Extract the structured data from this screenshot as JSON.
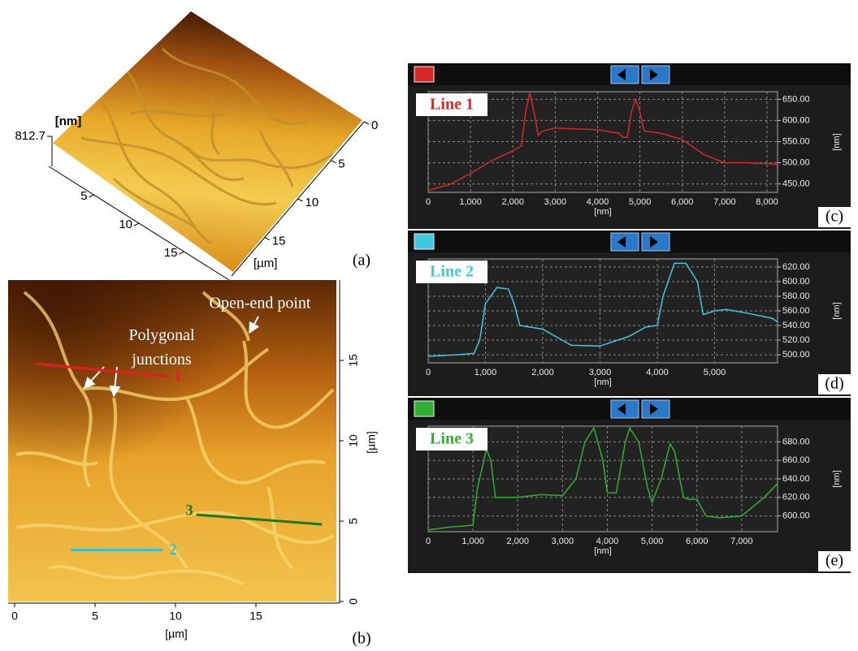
{
  "chart_data": [
    {
      "type": "surface3d",
      "panel_label": "(a)",
      "zlabel": "[nm]",
      "zticks": [
        812.7
      ],
      "xlim": [
        0,
        20
      ],
      "xticks": [
        5,
        10,
        15
      ],
      "ylim": [
        0,
        20
      ],
      "yticks": [
        0,
        5,
        10,
        15
      ],
      "ylabel": "[µm]"
    },
    {
      "type": "image",
      "panel_label": "(b)",
      "xlabel": "[µm]",
      "ylabel": "[µm]",
      "xlim": [
        0,
        20
      ],
      "ylim": [
        0,
        20
      ],
      "xticks": [
        0,
        5,
        10,
        15
      ],
      "yticks": [
        0,
        5,
        10,
        15
      ],
      "annotations": [
        "Open-end point",
        "Polygonal junctions"
      ],
      "profile_lines": [
        {
          "name": "1",
          "color": "#e02020",
          "x": [
            1.3,
            9.5
          ],
          "y": [
            14.8,
            14.0
          ]
        },
        {
          "name": "2",
          "color": "#30c0d8",
          "x": [
            3.5,
            9.2
          ],
          "y": [
            3.2,
            3.2
          ]
        },
        {
          "name": "3",
          "color": "#1a7a1a",
          "x": [
            11.3,
            19.1
          ],
          "y": [
            5.4,
            4.8
          ]
        }
      ]
    },
    {
      "type": "line",
      "panel_label": "(c)",
      "xlabel": "[nm]",
      "ylabel": "[nm]",
      "grid": true,
      "xlim": [
        0,
        8250
      ],
      "ylim": [
        430,
        668
      ],
      "xticks": [
        0,
        {
          "value": 1000,
          "label": "1,000"
        },
        {
          "value": 2000,
          "label": "2,000"
        },
        {
          "value": 3000,
          "label": "3,000"
        },
        {
          "value": 4000,
          "label": "4,000"
        },
        {
          "value": 5000,
          "label": "5,000"
        },
        {
          "value": 6000,
          "label": "6,000"
        },
        {
          "value": 7000,
          "label": "7,000"
        },
        {
          "value": 8000,
          "label": "8,000"
        }
      ],
      "yticks": [
        {
          "value": 450,
          "label": "450.00"
        },
        {
          "value": 500,
          "label": "500.00"
        },
        {
          "value": 550,
          "label": "550.00"
        },
        {
          "value": 600,
          "label": "600.00"
        },
        {
          "value": 650,
          "label": "650.00"
        }
      ],
      "series": [
        {
          "name": "Line 1",
          "color": "#d82828",
          "x": [
            0,
            500,
            1000,
            1500,
            2000,
            2200,
            2300,
            2400,
            2500,
            2600,
            2700,
            3000,
            3500,
            4000,
            4500,
            4600,
            4700,
            4800,
            4900,
            5000,
            5100,
            5500,
            6000,
            6500,
            7000,
            7500,
            8000,
            8250
          ],
          "values": [
            435,
            448,
            475,
            505,
            528,
            540,
            620,
            665,
            620,
            565,
            575,
            582,
            580,
            578,
            570,
            560,
            560,
            620,
            650,
            620,
            575,
            570,
            555,
            520,
            500,
            500,
            498,
            496
          ]
        }
      ]
    },
    {
      "type": "line",
      "panel_label": "(d)",
      "xlabel": "[nm]",
      "ylabel": "[nm]",
      "grid": true,
      "xlim": [
        0,
        6100
      ],
      "ylim": [
        489,
        631
      ],
      "xticks": [
        0,
        {
          "value": 1000,
          "label": "1,000"
        },
        {
          "value": 2000,
          "label": "2,000"
        },
        {
          "value": 3000,
          "label": "3,000"
        },
        {
          "value": 4000,
          "label": "4,000"
        },
        {
          "value": 5000,
          "label": "5,000"
        }
      ],
      "yticks": [
        {
          "value": 500,
          "label": "500.00"
        },
        {
          "value": 520,
          "label": "520.00"
        },
        {
          "value": 540,
          "label": "540.00"
        },
        {
          "value": 560,
          "label": "560.00"
        },
        {
          "value": 580,
          "label": "580.00"
        },
        {
          "value": 600,
          "label": "600.00"
        },
        {
          "value": 620,
          "label": "620.00"
        }
      ],
      "series": [
        {
          "name": "Line 2",
          "color": "#40c8e0",
          "x": [
            0,
            500,
            800,
            900,
            1000,
            1200,
            1400,
            1500,
            1600,
            2000,
            2500,
            3000,
            3500,
            3800,
            4000,
            4100,
            4300,
            4500,
            4700,
            4800,
            5000,
            5200,
            5500,
            6000,
            6100
          ],
          "values": [
            498,
            500,
            502,
            520,
            570,
            592,
            590,
            570,
            540,
            535,
            513,
            512,
            525,
            538,
            540,
            580,
            625,
            625,
            600,
            555,
            560,
            562,
            558,
            550,
            545
          ]
        }
      ]
    },
    {
      "type": "line",
      "panel_label": "(e)",
      "xlabel": "[nm]",
      "ylabel": "[nm]",
      "grid": true,
      "xlim": [
        0,
        7800
      ],
      "ylim": [
        583,
        697
      ],
      "xticks": [
        0,
        {
          "value": 1000,
          "label": "1,000"
        },
        {
          "value": 2000,
          "label": "2,000"
        },
        {
          "value": 3000,
          "label": "3,000"
        },
        {
          "value": 4000,
          "label": "4,000"
        },
        {
          "value": 5000,
          "label": "5,000"
        },
        {
          "value": 6000,
          "label": "6,000"
        },
        {
          "value": 7000,
          "label": "7,000"
        }
      ],
      "yticks": [
        {
          "value": 600,
          "label": "600.00"
        },
        {
          "value": 620,
          "label": "620.00"
        },
        {
          "value": 640,
          "label": "640.00"
        },
        {
          "value": 660,
          "label": "660.00"
        },
        {
          "value": 680,
          "label": "680.00"
        }
      ],
      "series": [
        {
          "name": "Line 3",
          "color": "#30b030",
          "x": [
            0,
            500,
            1000,
            1100,
            1300,
            1400,
            1500,
            2000,
            2500,
            3000,
            3300,
            3500,
            3700,
            3900,
            4000,
            4200,
            4400,
            4500,
            4700,
            4900,
            5000,
            5200,
            5400,
            5500,
            5700,
            5800,
            6000,
            6200,
            6500,
            7000,
            7500,
            7800
          ],
          "values": [
            585,
            588,
            590,
            630,
            672,
            660,
            620,
            620,
            623,
            622,
            640,
            680,
            695,
            660,
            625,
            625,
            680,
            695,
            680,
            630,
            615,
            640,
            678,
            670,
            620,
            618,
            618,
            600,
            598,
            600,
            620,
            635
          ]
        }
      ]
    }
  ]
}
